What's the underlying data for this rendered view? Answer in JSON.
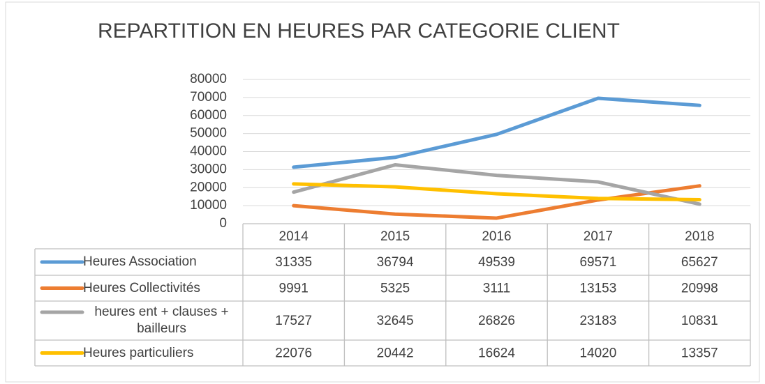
{
  "chart_data": {
    "type": "line",
    "title": "REPARTITION EN HEURES PAR CATEGORIE CLIENT",
    "categories": [
      "2014",
      "2015",
      "2016",
      "2017",
      "2018"
    ],
    "series": [
      {
        "name": "Heures Association",
        "color": "#5b9bd5",
        "values": [
          31335,
          36794,
          49539,
          69571,
          65627
        ]
      },
      {
        "name": "Heures Collectivités",
        "color": "#ed7d31",
        "values": [
          9991,
          5325,
          3111,
          13153,
          20998
        ]
      },
      {
        "name": "heures ent + clauses + bailleurs",
        "color": "#a5a5a5",
        "values": [
          17527,
          32645,
          26826,
          23183,
          10831
        ]
      },
      {
        "name": "Heures particuliers",
        "color": "#ffc000",
        "values": [
          22076,
          20442,
          16624,
          14020,
          13357
        ]
      }
    ],
    "ylim": [
      0,
      80000
    ],
    "yticks": [
      0,
      10000,
      20000,
      30000,
      40000,
      50000,
      60000,
      70000,
      80000
    ],
    "grid": true
  }
}
